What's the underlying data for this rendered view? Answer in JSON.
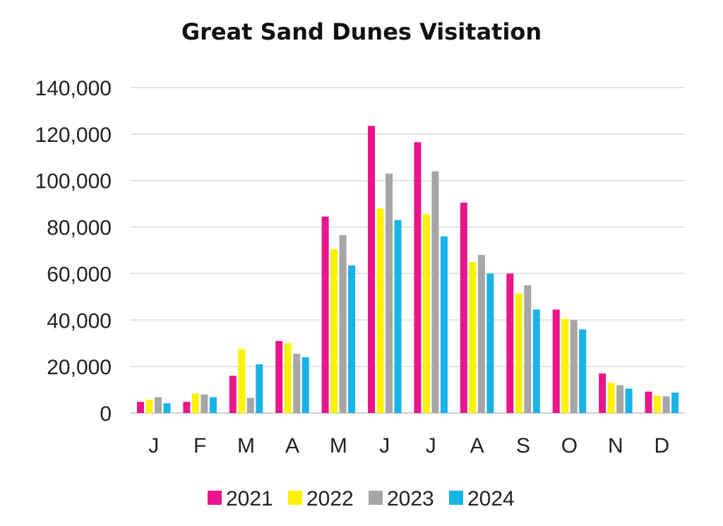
{
  "chart_data": {
    "type": "bar",
    "title": "Great Sand Dunes Visitation",
    "xlabel": "",
    "ylabel": "",
    "ylim": [
      0,
      140000
    ],
    "yticks": [
      0,
      20000,
      40000,
      60000,
      80000,
      100000,
      120000,
      140000
    ],
    "ytick_labels": [
      "0",
      "20,000",
      "40,000",
      "60,000",
      "80,000",
      "100,000",
      "120,000",
      "140,000"
    ],
    "grid": true,
    "legend_position": "bottom",
    "categories": [
      "J",
      "F",
      "M",
      "A",
      "M",
      "J",
      "J",
      "A",
      "S",
      "O",
      "N",
      "D"
    ],
    "series": [
      {
        "name": "2021",
        "color": "#e8158c",
        "values": [
          4800,
          4800,
          16000,
          31000,
          84500,
          123500,
          116500,
          90500,
          60000,
          44500,
          17000,
          9200
        ]
      },
      {
        "name": "2022",
        "color": "#fff200",
        "values": [
          5800,
          8500,
          27500,
          30000,
          70500,
          88000,
          85500,
          65000,
          51500,
          40500,
          13000,
          7500
        ]
      },
      {
        "name": "2023",
        "color": "#a6a6a8",
        "values": [
          6800,
          8000,
          6500,
          25500,
          76500,
          103000,
          104000,
          68000,
          55000,
          40000,
          12000,
          7200
        ]
      },
      {
        "name": "2024",
        "color": "#1ab3e8",
        "values": [
          4200,
          6800,
          21000,
          24000,
          63500,
          83000,
          76000,
          60000,
          44500,
          36000,
          10500,
          8800
        ]
      }
    ]
  }
}
